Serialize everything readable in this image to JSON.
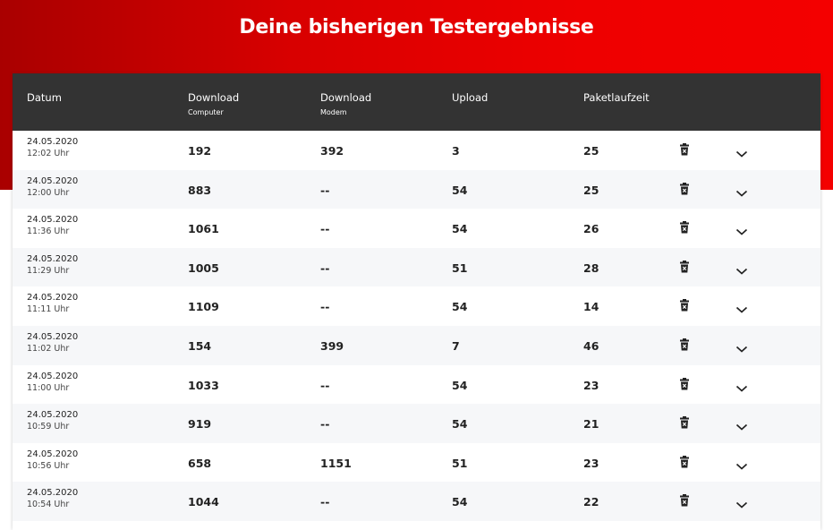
{
  "header": {
    "title": "Deine bisherigen Testergebnisse"
  },
  "table": {
    "columns": [
      {
        "label": "Datum"
      },
      {
        "label": "Download",
        "sublabel": "Computer"
      },
      {
        "label": "Download",
        "sublabel": "Modem"
      },
      {
        "label": "Upload"
      },
      {
        "label": "Paketlaufzeit"
      }
    ],
    "rows": [
      {
        "date": "24.05.2020",
        "time": "12:02 Uhr",
        "download_computer": 192,
        "download_modem": 392,
        "upload": 3,
        "latency": 25
      },
      {
        "date": "24.05.2020",
        "time": "12:00 Uhr",
        "download_computer": 883,
        "download_modem": "--",
        "upload": 54,
        "latency": 25
      },
      {
        "date": "24.05.2020",
        "time": "11:36 Uhr",
        "download_computer": 1061,
        "download_modem": "--",
        "upload": 54,
        "latency": 26
      },
      {
        "date": "24.05.2020",
        "time": "11:29 Uhr",
        "download_computer": 1005,
        "download_modem": "--",
        "upload": 51,
        "latency": 28
      },
      {
        "date": "24.05.2020",
        "time": "11:11 Uhr",
        "download_computer": 1109,
        "download_modem": "--",
        "upload": 54,
        "latency": 14
      },
      {
        "date": "24.05.2020",
        "time": "11:02 Uhr",
        "download_computer": 154,
        "download_modem": 399,
        "upload": 7,
        "latency": 46
      },
      {
        "date": "24.05.2020",
        "time": "11:00 Uhr",
        "download_computer": 1033,
        "download_modem": "--",
        "upload": 54,
        "latency": 23
      },
      {
        "date": "24.05.2020",
        "time": "10:59 Uhr",
        "download_computer": 919,
        "download_modem": "--",
        "upload": 54,
        "latency": 21
      },
      {
        "date": "24.05.2020",
        "time": "10:56 Uhr",
        "download_computer": 658,
        "download_modem": 1151,
        "upload": 51,
        "latency": 23
      },
      {
        "date": "24.05.2020",
        "time": "10:54 Uhr",
        "download_computer": 1044,
        "download_modem": "--",
        "upload": 54,
        "latency": 22
      }
    ]
  }
}
